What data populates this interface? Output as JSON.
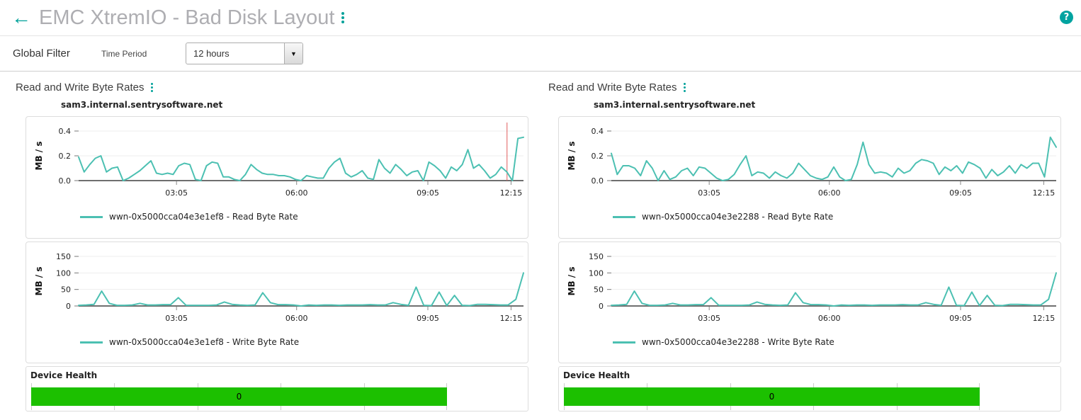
{
  "icons": {
    "back": "←",
    "dropdown_arrow": "▼",
    "help": "?"
  },
  "header": {
    "title": "EMC XtremIO - Bad Disk Layout"
  },
  "filter": {
    "title": "Global Filter",
    "field_label": "Time Period",
    "selected_value": "12 hours"
  },
  "columns": [
    {
      "title": "Read and Write Byte Rates",
      "host": "sam3.internal.sentrysoftware.net",
      "health": {
        "label": "Device Health",
        "value": "0"
      }
    },
    {
      "title": "Read and Write Byte Rates",
      "host": "sam3.internal.sentrysoftware.net",
      "health": {
        "label": "Device Health",
        "value": "0"
      }
    }
  ],
  "colors": {
    "accent_teal": "#00a19a",
    "line_teal": "#4cc0b2",
    "health_green": "#1cc000",
    "cursor_red": "#e05c5c"
  },
  "chart_data": [
    {
      "id": "left-read",
      "type": "line",
      "legend": "wwn-0x5000cca04e3e1ef8 - Read Byte Rate",
      "ylabel": "MB / s",
      "ymax": 0.4,
      "ylim": [
        0,
        0.4
      ],
      "yticks": [
        {
          "v": 0,
          "label": "0.0"
        },
        {
          "v": 0.2,
          "label": "0.2"
        },
        {
          "v": 0.4,
          "label": "0.4"
        }
      ],
      "xticks": [
        {
          "f": 0.22,
          "label": "03:05"
        },
        {
          "f": 0.49,
          "label": "06:00"
        },
        {
          "f": 0.785,
          "label": "09:05"
        },
        {
          "f": 0.972,
          "label": "12:15"
        }
      ],
      "line_color": "#4cc0b2",
      "cursor_f": 0.963,
      "values": [
        0.19,
        0.07,
        0.13,
        0.18,
        0.2,
        0.07,
        0.1,
        0.11,
        0.0,
        0.02,
        0.05,
        0.08,
        0.12,
        0.16,
        0.06,
        0.05,
        0.06,
        0.05,
        0.12,
        0.14,
        0.13,
        0.01,
        0.0,
        0.12,
        0.15,
        0.14,
        0.03,
        0.03,
        0.01,
        0.0,
        0.05,
        0.13,
        0.09,
        0.06,
        0.05,
        0.05,
        0.04,
        0.04,
        0.03,
        0.01,
        0.0,
        0.04,
        0.03,
        0.02,
        0.02,
        0.1,
        0.15,
        0.18,
        0.06,
        0.03,
        0.05,
        0.08,
        0.02,
        0.01,
        0.17,
        0.1,
        0.06,
        0.13,
        0.09,
        0.04,
        0.07,
        0.08,
        0.0,
        0.15,
        0.12,
        0.08,
        0.02,
        0.11,
        0.08,
        0.13,
        0.25,
        0.1,
        0.13,
        0.08,
        0.02,
        0.05,
        0.11,
        0.07,
        0.0,
        0.34,
        0.35
      ]
    },
    {
      "id": "left-write",
      "type": "line",
      "legend": "wwn-0x5000cca04e3e1ef8 - Write Byte Rate",
      "ylabel": "MB / s",
      "ymax": 150,
      "ylim": [
        0,
        150
      ],
      "yticks": [
        {
          "v": 0,
          "label": "0"
        },
        {
          "v": 50,
          "label": "50"
        },
        {
          "v": 100,
          "label": "100"
        },
        {
          "v": 150,
          "label": "150"
        }
      ],
      "xticks": [
        {
          "f": 0.22,
          "label": "03:05"
        },
        {
          "f": 0.49,
          "label": "06:00"
        },
        {
          "f": 0.785,
          "label": "09:05"
        },
        {
          "f": 0.972,
          "label": "12:15"
        }
      ],
      "line_color": "#4cc0b2",
      "values": [
        2,
        3,
        5,
        45,
        8,
        2,
        2,
        3,
        8,
        3,
        3,
        4,
        4,
        25,
        2,
        2,
        2,
        2,
        3,
        12,
        5,
        3,
        2,
        3,
        40,
        10,
        4,
        4,
        3,
        0,
        3,
        2,
        3,
        3,
        2,
        3,
        3,
        3,
        4,
        3,
        3,
        10,
        5,
        2,
        57,
        2,
        1,
        42,
        1,
        32,
        2,
        1,
        5,
        5,
        4,
        3,
        3,
        20,
        100
      ]
    },
    {
      "id": "right-read",
      "type": "line",
      "legend": "wwn-0x5000cca04e3e2288 - Read Byte Rate",
      "ylabel": "MB / s",
      "ymax": 0.4,
      "ylim": [
        0,
        0.4
      ],
      "yticks": [
        {
          "v": 0,
          "label": "0.0"
        },
        {
          "v": 0.2,
          "label": "0.2"
        },
        {
          "v": 0.4,
          "label": "0.4"
        }
      ],
      "xticks": [
        {
          "f": 0.22,
          "label": "03:05"
        },
        {
          "f": 0.49,
          "label": "06:00"
        },
        {
          "f": 0.785,
          "label": "09:05"
        },
        {
          "f": 0.972,
          "label": "12:15"
        }
      ],
      "line_color": "#4cc0b2",
      "values": [
        0.22,
        0.05,
        0.12,
        0.12,
        0.1,
        0.04,
        0.16,
        0.1,
        0.0,
        0.08,
        0.01,
        0.03,
        0.08,
        0.1,
        0.04,
        0.11,
        0.1,
        0.06,
        0.02,
        0.0,
        0.01,
        0.05,
        0.13,
        0.2,
        0.04,
        0.07,
        0.06,
        0.02,
        0.07,
        0.04,
        0.02,
        0.06,
        0.14,
        0.09,
        0.04,
        0.02,
        0.01,
        0.03,
        0.11,
        0.03,
        0.0,
        0.01,
        0.13,
        0.31,
        0.13,
        0.06,
        0.07,
        0.06,
        0.03,
        0.1,
        0.06,
        0.08,
        0.14,
        0.17,
        0.16,
        0.14,
        0.05,
        0.11,
        0.08,
        0.12,
        0.06,
        0.15,
        0.13,
        0.1,
        0.02,
        0.09,
        0.04,
        0.07,
        0.12,
        0.06,
        0.13,
        0.1,
        0.14,
        0.14,
        0.03,
        0.35,
        0.27
      ]
    },
    {
      "id": "right-write",
      "type": "line",
      "legend": "wwn-0x5000cca04e3e2288 - Write Byte Rate",
      "ylabel": "MB / s",
      "ymax": 150,
      "ylim": [
        0,
        150
      ],
      "yticks": [
        {
          "v": 0,
          "label": "0"
        },
        {
          "v": 50,
          "label": "50"
        },
        {
          "v": 100,
          "label": "100"
        },
        {
          "v": 150,
          "label": "150"
        }
      ],
      "xticks": [
        {
          "f": 0.22,
          "label": "03:05"
        },
        {
          "f": 0.49,
          "label": "06:00"
        },
        {
          "f": 0.785,
          "label": "09:05"
        },
        {
          "f": 0.972,
          "label": "12:15"
        }
      ],
      "line_color": "#4cc0b2",
      "values": [
        2,
        3,
        5,
        45,
        8,
        2,
        2,
        3,
        8,
        3,
        3,
        4,
        4,
        25,
        2,
        2,
        2,
        2,
        3,
        12,
        5,
        3,
        2,
        3,
        40,
        10,
        4,
        4,
        3,
        0,
        3,
        2,
        3,
        3,
        2,
        3,
        3,
        3,
        4,
        3,
        3,
        10,
        5,
        2,
        57,
        2,
        1,
        42,
        1,
        32,
        2,
        1,
        5,
        5,
        4,
        3,
        3,
        20,
        100
      ]
    }
  ]
}
